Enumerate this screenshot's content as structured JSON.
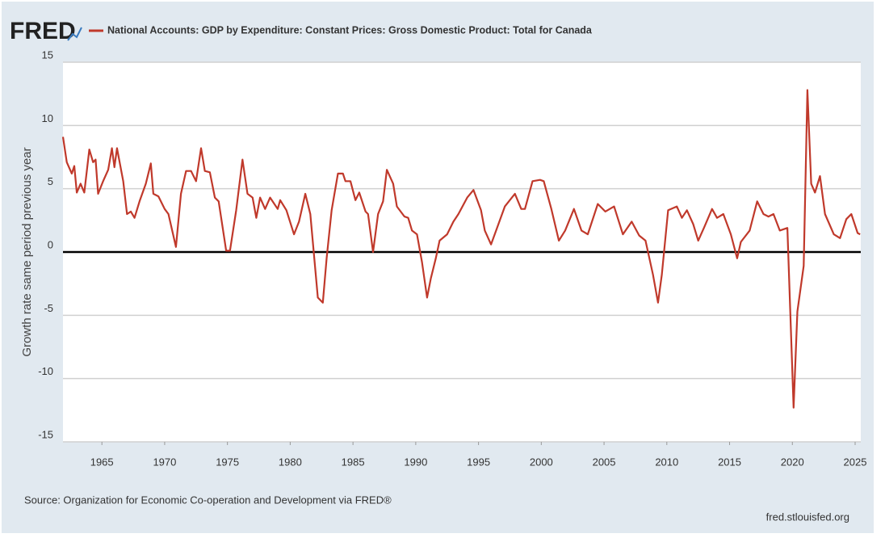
{
  "logo": "FRED",
  "chart_data": {
    "type": "line",
    "y_label": "Growth rate same period previous year",
    "source": "Source: Organization for Economic Co-operation and Development via FRED®",
    "site": "fred.stlouisfed.org",
    "xlim": [
      1961.9,
      2025.45
    ],
    "xticks": [
      1965,
      1970,
      1975,
      1980,
      1985,
      1990,
      1995,
      2000,
      2005,
      2010,
      2015,
      2020,
      2025
    ],
    "ylim": [
      -15,
      15
    ],
    "yticks": [
      -15,
      -10,
      -5,
      0,
      5,
      10,
      15
    ],
    "grid": true,
    "zero_line": 0,
    "x": [
      1961.9,
      1962.2,
      1962.6,
      1962.8,
      1963.0,
      1963.3,
      1963.6,
      1964.0,
      1964.3,
      1964.5,
      1964.7,
      1965.1,
      1965.5,
      1965.8,
      1966.0,
      1966.2,
      1966.7,
      1967.0,
      1967.3,
      1967.6,
      1968.0,
      1968.5,
      1968.9,
      1969.1,
      1969.5,
      1970.0,
      1970.3,
      1970.9,
      1971.3,
      1971.7,
      1972.1,
      1972.5,
      1972.9,
      1973.2,
      1973.6,
      1974.0,
      1974.3,
      1974.9,
      1975.2,
      1975.7,
      1976.2,
      1976.6,
      1977.0,
      1977.3,
      1977.6,
      1978.0,
      1978.4,
      1979.0,
      1979.2,
      1979.7,
      1980.3,
      1980.7,
      1981.2,
      1981.6,
      1982.2,
      1982.6,
      1982.9,
      1983.3,
      1983.8,
      1984.2,
      1984.4,
      1984.8,
      1985.2,
      1985.5,
      1986.0,
      1986.2,
      1986.6,
      1987.0,
      1987.4,
      1987.7,
      1988.2,
      1988.5,
      1989.1,
      1989.4,
      1989.7,
      1990.1,
      1990.5,
      1990.9,
      1991.2,
      1991.6,
      1991.9,
      1992.5,
      1993.0,
      1993.4,
      1994.1,
      1994.6,
      1995.2,
      1995.5,
      1996.0,
      1996.4,
      1997.1,
      1997.9,
      1998.4,
      1998.7,
      1999.3,
      1999.9,
      2000.2,
      2000.8,
      2001.4,
      2001.9,
      2002.6,
      2003.2,
      2003.7,
      2004.5,
      2005.1,
      2005.8,
      2006.5,
      2007.2,
      2007.8,
      2008.3,
      2008.9,
      2009.3,
      2009.6,
      2010.1,
      2010.8,
      2011.2,
      2011.6,
      2012.1,
      2012.5,
      2013.0,
      2013.6,
      2014.0,
      2014.5,
      2015.1,
      2015.6,
      2015.9,
      2016.6,
      2017.2,
      2017.7,
      2018.1,
      2018.5,
      2019.0,
      2019.6,
      2020.1,
      2020.4,
      2020.9,
      2021.2,
      2021.5,
      2021.8,
      2022.2,
      2022.6,
      2023.3,
      2023.8,
      2024.3,
      2024.7,
      2025.2,
      2025.4
    ],
    "series": [
      {
        "name": "National Accounts: GDP by Expenditure: Constant Prices: Gross Domestic Product: Total for Canada",
        "color": "#c0392b",
        "values": [
          9.1,
          7.1,
          6.2,
          6.8,
          4.7,
          5.4,
          4.7,
          8.1,
          7.1,
          7.3,
          4.6,
          5.6,
          6.5,
          8.2,
          6.7,
          8.2,
          5.6,
          3.0,
          3.2,
          2.7,
          4.0,
          5.4,
          7.0,
          4.6,
          4.4,
          3.4,
          3.0,
          0.4,
          4.6,
          6.4,
          6.4,
          5.6,
          8.2,
          6.4,
          6.3,
          4.3,
          4.0,
          0.1,
          0.1,
          3.3,
          7.3,
          4.6,
          4.3,
          2.7,
          4.3,
          3.4,
          4.3,
          3.4,
          4.1,
          3.3,
          1.4,
          2.4,
          4.6,
          3.0,
          -3.6,
          -4.0,
          -0.5,
          3.3,
          6.2,
          6.2,
          5.6,
          5.6,
          4.1,
          4.7,
          3.2,
          3.0,
          0.0,
          3.0,
          4.0,
          6.5,
          5.4,
          3.6,
          2.8,
          2.7,
          1.7,
          1.4,
          -0.8,
          -3.6,
          -2.1,
          -0.5,
          0.9,
          1.4,
          2.4,
          3.0,
          4.3,
          4.9,
          3.3,
          1.7,
          0.6,
          1.7,
          3.6,
          4.6,
          3.4,
          3.4,
          5.6,
          5.7,
          5.6,
          3.4,
          0.9,
          1.7,
          3.4,
          1.7,
          1.4,
          3.8,
          3.2,
          3.6,
          1.4,
          2.4,
          1.3,
          0.9,
          -1.8,
          -4.0,
          -1.8,
          3.3,
          3.6,
          2.7,
          3.3,
          2.2,
          0.9,
          2.0,
          3.4,
          2.7,
          3.0,
          1.4,
          -0.5,
          0.8,
          1.7,
          4.0,
          3.0,
          2.8,
          3.0,
          1.7,
          1.9,
          -12.3,
          -4.7,
          -1.1,
          12.8,
          5.4,
          4.7,
          6.0,
          3.0,
          1.4,
          1.1,
          2.6,
          3.0,
          1.5,
          1.4
        ]
      }
    ]
  }
}
